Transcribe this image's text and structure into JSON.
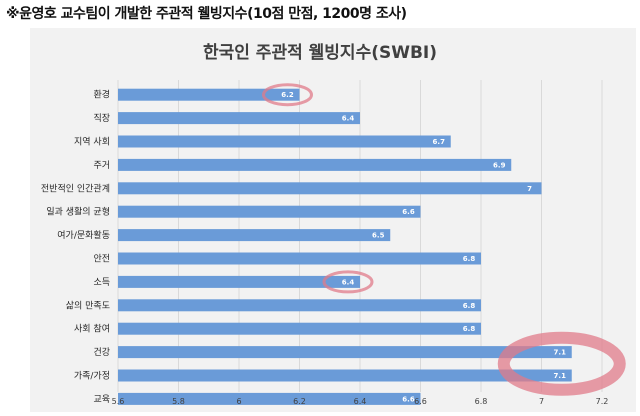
{
  "caption": "※윤영호 교수팀이 개발한 주관적 웰빙지수(10점 만점, 1200명 조사)",
  "colors": {
    "bar": "#6a9bd8",
    "panel": "#f2f2f2",
    "grid": "#d9d9d9",
    "highlight": "#e07b8a"
  },
  "chart_data": {
    "type": "bar",
    "orientation": "horizontal",
    "title": "한국인 주관적 웰빙지수(SWBI)",
    "categories": [
      "환경",
      "직장",
      "지역 사회",
      "주거",
      "전반적인 인간관계",
      "일과 생활의 균형",
      "여가/문화활동",
      "안전",
      "소득",
      "삶의 만족도",
      "사회 참여",
      "건강",
      "가족/가정",
      "교육"
    ],
    "values": [
      6.2,
      6.4,
      6.7,
      6.9,
      7,
      6.6,
      6.5,
      6.8,
      6.4,
      6.8,
      6.8,
      7.1,
      7.1,
      6.6
    ],
    "value_labels": [
      "6.2",
      "6.4",
      "6.7",
      "6.9",
      "7",
      "6.6",
      "6.5",
      "6.8",
      "6.4",
      "6.8",
      "6.8",
      "7.1",
      "7.1",
      "6.6"
    ],
    "xlim": [
      5.6,
      7.2
    ],
    "xticks": [
      "5.6",
      "5.8",
      "6",
      "6.2",
      "6.4",
      "6.6",
      "6.8",
      "7",
      "7.2"
    ],
    "grid": true,
    "legend": "none",
    "highlighted": [
      "환경",
      "소득",
      "건강",
      "가족/가정"
    ]
  }
}
